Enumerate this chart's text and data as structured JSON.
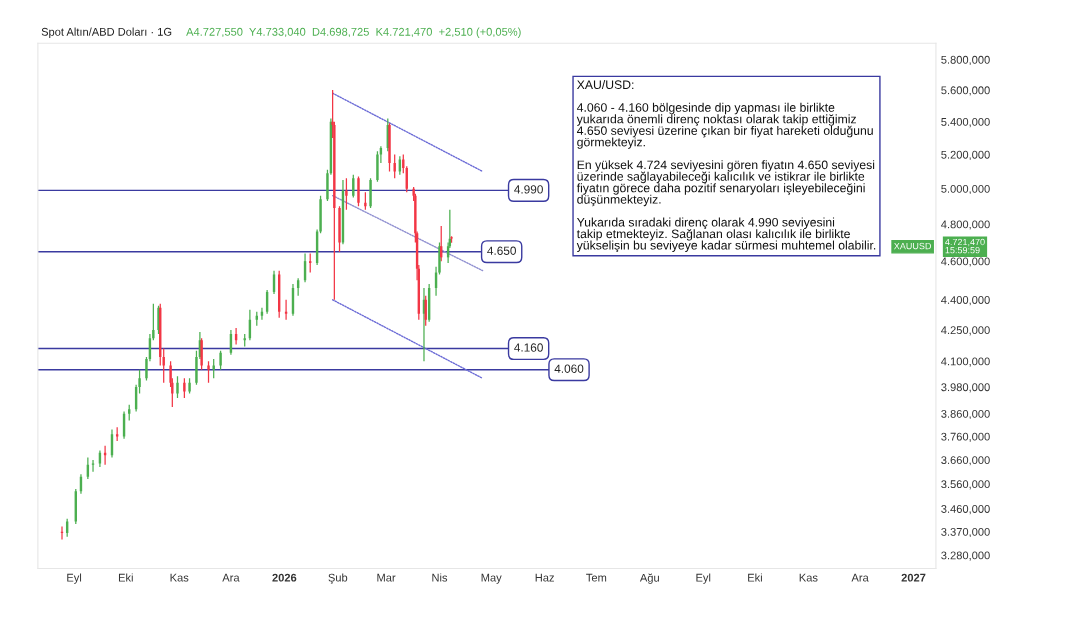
{
  "chart_data": {
    "type": "candlestick",
    "title": "Spot Altın/ABD Doları · 1G",
    "subtitle": "A4.727,550  Y4.733,040  D4.698,725  K4.721,470  +2,510 (+0,05%)",
    "annotations": [
      "XAU/USD:\n\n4.060 - 4.160 bölgesinde dip yapması ile birlikte\nyukarıda önemli direnç noktası olarak takip ettiğimiz\n4.650 seviyesi üzerine çıkan bir fiyat hareketi olduğunu\ngörmekteyiz.\n\nEn yüksek 4.724 seviyesini gören fiyatın 4.650 seviyesi\nüzerinde sağlayabileceği kalıcılık ve istikrar ile birlikte\nfiyatın görece daha pozitif senaryoları işleyebileceğini\ndüşünmekteyiz.\n\nYukarıda sıradaki direnç olarak 4.990 seviyesini\ntakip etmekteyiz. Sağlanan olası kalıcılık ile birlikte\nyükselişin bu seviyeye kadar sürmesi muhtemel olabilir.",
      "XAUUSD",
      "4.721,470\n15:59:59"
    ],
    "series": [
      {
        "color": "#4caf50",
        "x": [
          "2025-08-28",
          "2025-09-02",
          "2025-09-05",
          "2025-09-09",
          "2025-09-12",
          "2025-09-16",
          "2025-09-23",
          "2025-09-30",
          "2025-10-03",
          "2025-10-07",
          "2025-10-09",
          "2025-10-13",
          "2025-10-15",
          "2025-10-17",
          "2025-10-20",
          "2025-10-31",
          "2025-11-07",
          "2025-11-11",
          "2025-11-13",
          "2025-11-21",
          "2025-11-25",
          "2025-12-01",
          "2025-12-09",
          "2025-12-12",
          "2025-12-16",
          "2025-12-19",
          "2025-12-22",
          "2025-12-26",
          "2026-01-06",
          "2026-01-09",
          "2026-01-13",
          "2026-01-20",
          "2026-01-22",
          "2026-01-26",
          "2026-01-28",
          "2026-02-04",
          "2026-02-10",
          "2026-02-20",
          "2026-02-24",
          "2026-02-26",
          "2026-03-02",
          "2026-03-09",
          "2026-03-23",
          "2026-03-26",
          "2026-03-30",
          "2026-04-01",
          "2026-04-06",
          "2026-04-07"
        ],
        "ohlc": [
          [
            3365,
            3420,
            3350,
            3410
          ],
          [
            3410,
            3540,
            3400,
            3530
          ],
          [
            3530,
            3600,
            3520,
            3590
          ],
          [
            3590,
            3670,
            3580,
            3640
          ],
          [
            3640,
            3660,
            3610,
            3645
          ],
          [
            3645,
            3700,
            3630,
            3690
          ],
          [
            3680,
            3790,
            3670,
            3770
          ],
          [
            3760,
            3870,
            3750,
            3860
          ],
          [
            3860,
            3900,
            3830,
            3880
          ],
          [
            3880,
            3990,
            3870,
            3980
          ],
          [
            3980,
            4060,
            3950,
            4020
          ],
          [
            4020,
            4120,
            4010,
            4110
          ],
          [
            4110,
            4230,
            4100,
            4210
          ],
          [
            4210,
            4380,
            4200,
            4250
          ],
          [
            4250,
            4370,
            4230,
            4360
          ],
          [
            3950,
            4030,
            3930,
            4000
          ],
          [
            3960,
            4020,
            3950,
            4000
          ],
          [
            4000,
            4150,
            3990,
            4120
          ],
          [
            4120,
            4240,
            4110,
            4200
          ],
          [
            4060,
            4110,
            4020,
            4080
          ],
          [
            4080,
            4150,
            4060,
            4140
          ],
          [
            4140,
            4250,
            4130,
            4230
          ],
          [
            4200,
            4230,
            4170,
            4210
          ],
          [
            4210,
            4350,
            4200,
            4300
          ],
          [
            4300,
            4340,
            4270,
            4320
          ],
          [
            4320,
            4360,
            4300,
            4340
          ],
          [
            4340,
            4450,
            4330,
            4440
          ],
          [
            4440,
            4550,
            4430,
            4530
          ],
          [
            4330,
            4480,
            4320,
            4460
          ],
          [
            4460,
            4510,
            4420,
            4500
          ],
          [
            4500,
            4640,
            4490,
            4600
          ],
          [
            4590,
            4770,
            4580,
            4760
          ],
          [
            4760,
            4960,
            4750,
            4940
          ],
          [
            4940,
            5110,
            4930,
            5090
          ],
          [
            5090,
            5420,
            5080,
            5400
          ],
          [
            4700,
            5050,
            4690,
            4990
          ],
          [
            4960,
            5080,
            4950,
            5060
          ],
          [
            4900,
            5060,
            4890,
            5050
          ],
          [
            5050,
            5220,
            5040,
            5200
          ],
          [
            5200,
            5250,
            5150,
            5240
          ],
          [
            5240,
            5420,
            5220,
            5380
          ],
          [
            5100,
            5190,
            5080,
            5170
          ],
          [
            4330,
            4460,
            4100,
            4400
          ],
          [
            4300,
            4480,
            4290,
            4460
          ],
          [
            4460,
            4570,
            4420,
            4540
          ],
          [
            4540,
            4700,
            4530,
            4680
          ],
          [
            4620,
            4700,
            4590,
            4680
          ],
          [
            4680,
            4880,
            4670,
            4720
          ]
        ]
      },
      {
        "color": "#f23645",
        "x": [
          "2025-08-25",
          "2025-09-19",
          "2025-09-26",
          "2025-10-21",
          "2025-10-23",
          "2025-10-27",
          "2025-10-28",
          "2025-11-04",
          "2025-11-14",
          "2025-11-18",
          "2025-12-04",
          "2025-12-29",
          "2026-01-02",
          "2026-01-16",
          "2026-01-29",
          "2026-01-30",
          "2026-02-02",
          "2026-02-06",
          "2026-02-13",
          "2026-02-17",
          "2026-03-03",
          "2026-03-06",
          "2026-03-11",
          "2026-03-13",
          "2026-03-17",
          "2026-03-18",
          "2026-03-19",
          "2026-03-20",
          "2026-03-24",
          "2026-04-02",
          "2026-04-08"
        ],
        "ohlc": [
          [
            3370,
            3390,
            3340,
            3365
          ],
          [
            3690,
            3720,
            3640,
            3680
          ],
          [
            3770,
            3800,
            3740,
            3760
          ],
          [
            4360,
            4380,
            4080,
            4120
          ],
          [
            4120,
            4160,
            4000,
            4080
          ],
          [
            4080,
            4100,
            3980,
            4000
          ],
          [
            4000,
            4020,
            3890,
            3950
          ],
          [
            4000,
            4020,
            3930,
            3960
          ],
          [
            4200,
            4210,
            4060,
            4080
          ],
          [
            4080,
            4100,
            4000,
            4060
          ],
          [
            4230,
            4260,
            4180,
            4200
          ],
          [
            4530,
            4550,
            4310,
            4340
          ],
          [
            4340,
            4400,
            4300,
            4330
          ],
          [
            4600,
            4640,
            4540,
            4590
          ],
          [
            5400,
            5600,
            5300,
            5380
          ],
          [
            5380,
            5400,
            4400,
            4890
          ],
          [
            4890,
            4900,
            4650,
            4700
          ],
          [
            4990,
            5060,
            4880,
            4960
          ],
          [
            5060,
            5070,
            4900,
            4920
          ],
          [
            4920,
            4980,
            4880,
            4900
          ],
          [
            5380,
            5390,
            5100,
            5150
          ],
          [
            5150,
            5200,
            5060,
            5100
          ],
          [
            5170,
            5200,
            5090,
            5120
          ],
          [
            5120,
            5130,
            4980,
            5000
          ],
          [
            5000,
            5010,
            4930,
            4960
          ],
          [
            4960,
            4970,
            4700,
            4750
          ],
          [
            4750,
            4760,
            4500,
            4560
          ],
          [
            4560,
            4580,
            4300,
            4330
          ],
          [
            4400,
            4420,
            4270,
            4300
          ],
          [
            4680,
            4790,
            4600,
            4620
          ],
          [
            4727.55,
            4733.04,
            4698.725,
            4721.47
          ]
        ]
      },
      {
        "type": "line",
        "color": "#6b6bd6",
        "line_style": "dotted",
        "x": [
          "2026-01-29",
          "2026-04-26"
        ],
        "values": [
          5580,
          5100
        ]
      },
      {
        "type": "line",
        "color": "#8f8fd0",
        "line_style": "dotted",
        "x": [
          "2026-01-29",
          "2026-04-26"
        ],
        "values": [
          4960,
          4550
        ]
      },
      {
        "type": "line",
        "color": "#6b6bd6",
        "line_style": "dotted",
        "x": [
          "2026-01-29",
          "2026-04-26"
        ],
        "values": [
          4400,
          4020
        ]
      }
    ],
    "ref_lines": [
      {
        "axis": "y",
        "value": 4990,
        "label": "4.990",
        "color": "#3a3aa0"
      },
      {
        "axis": "y",
        "value": 4650,
        "label": "4.650",
        "color": "#3a3aa0"
      },
      {
        "axis": "y",
        "value": 4160,
        "label": "4.160",
        "color": "#3a3aa0"
      },
      {
        "axis": "y",
        "value": 4060,
        "label": "4.060",
        "color": "#3a3aa0"
      }
    ],
    "log": "y",
    "xlim": [
      "2025-08-11",
      "2027-01-14"
    ],
    "xticks": [
      {
        "value": "2025-09-01",
        "label": "Eyl"
      },
      {
        "value": "2025-10-01",
        "label": "Eki"
      },
      {
        "value": "2025-11-01",
        "label": "Kas"
      },
      {
        "value": "2025-12-01",
        "label": "Ara"
      },
      {
        "value": "2026-01-01",
        "label": "2026"
      },
      {
        "value": "2026-02-01",
        "label": "Şub"
      },
      {
        "value": "2026-03-01",
        "label": "Mar"
      },
      {
        "value": "2026-04-01",
        "label": "Nis"
      },
      {
        "value": "2026-05-01",
        "label": "May"
      },
      {
        "value": "2026-06-01",
        "label": "Haz"
      },
      {
        "value": "2026-07-01",
        "label": "Tem"
      },
      {
        "value": "2026-08-01",
        "label": "Ağu"
      },
      {
        "value": "2026-09-01",
        "label": "Eyl"
      },
      {
        "value": "2026-10-01",
        "label": "Eki"
      },
      {
        "value": "2026-11-01",
        "label": "Kas"
      },
      {
        "value": "2026-12-01",
        "label": "Ara"
      },
      {
        "value": "2027-01-01",
        "label": "2027"
      }
    ],
    "ylim": [
      3230,
      5910
    ],
    "yticks": [
      {
        "value": 3280,
        "label": "3.280,000"
      },
      {
        "value": 3370,
        "label": "3.370,000"
      },
      {
        "value": 3460,
        "label": "3.460,000"
      },
      {
        "value": 3560,
        "label": "3.560,000"
      },
      {
        "value": 3660,
        "label": "3.660,000"
      },
      {
        "value": 3760,
        "label": "3.760,000"
      },
      {
        "value": 3860,
        "label": "3.860,000"
      },
      {
        "value": 3980,
        "label": "3.980,000"
      },
      {
        "value": 4100,
        "label": "4.100,000"
      },
      {
        "value": 4250,
        "label": "4.250,000"
      },
      {
        "value": 4400,
        "label": "4.400,000"
      },
      {
        "value": 4600,
        "label": "4.600,000"
      },
      {
        "value": 4800,
        "label": "4.800,000"
      },
      {
        "value": 5000,
        "label": "5.000,000"
      },
      {
        "value": 5200,
        "label": "5.200,000"
      },
      {
        "value": 5400,
        "label": "5.400,000"
      },
      {
        "value": 5600,
        "label": "5.600,000"
      },
      {
        "value": 5800,
        "label": "5.800,000"
      }
    ],
    "grid": false
  }
}
